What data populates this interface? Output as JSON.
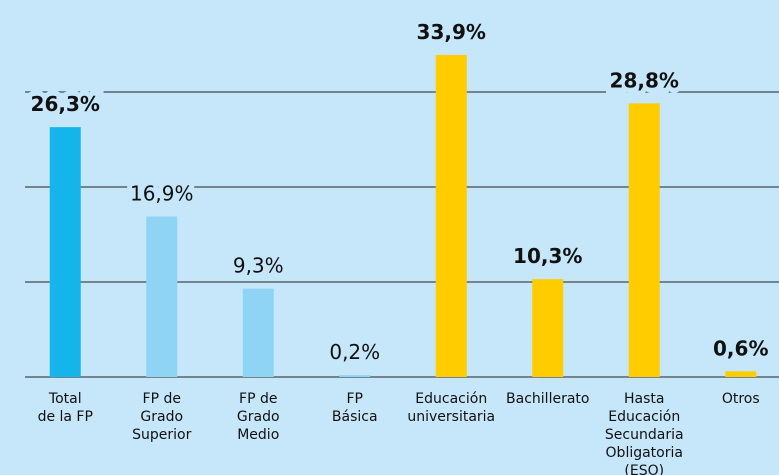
{
  "chart_data": {
    "type": "bar",
    "categories": [
      "Total\nde la FP",
      "FP de\nGrado\nSuperior",
      "FP de\nGrado\nMedio",
      "FP\nBásica",
      "Educación\nuniversitaria",
      "Bachillerato",
      "Hasta\nEducación\nSecundaria\nObligatoria (ESO)",
      "Otros"
    ],
    "values": [
      26.3,
      16.9,
      9.3,
      0.2,
      33.9,
      10.3,
      28.8,
      0.6
    ],
    "value_labels": [
      "26,3%",
      "16,9%",
      "9,3%",
      "0,2%",
      "33,9%",
      "10,3%",
      "28,8%",
      "0,6%"
    ],
    "colors": [
      "#13b5ea",
      "#8fd3f5",
      "#8fd3f5",
      "#8fd3f5",
      "#ffcc00",
      "#ffcc00",
      "#ffcc00",
      "#ffcc00"
    ],
    "ylim": [
      0,
      34
    ],
    "yticks": [
      0,
      10,
      20,
      30
    ],
    "grid": true
  }
}
